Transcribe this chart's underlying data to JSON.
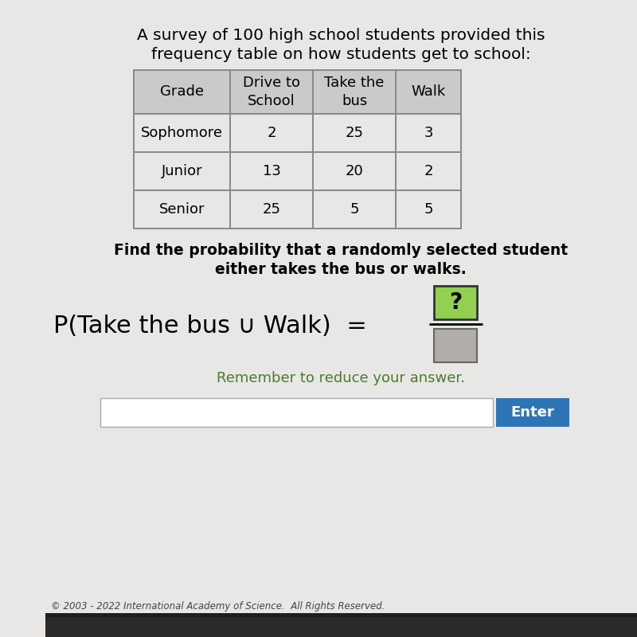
{
  "title_line1": "A survey of 100 high school students provided this",
  "title_line2": "frequency table on how students get to school:",
  "table_headers": [
    "Grade",
    "Drive to\nSchool",
    "Take the\nbus",
    "Walk"
  ],
  "table_rows": [
    [
      "Sophomore",
      "2",
      "25",
      "3"
    ],
    [
      "Junior",
      "13",
      "20",
      "2"
    ],
    [
      "Senior",
      "25",
      "5",
      "5"
    ]
  ],
  "question_line1": "Find the probability that a randomly selected student",
  "question_line2": "either takes the bus or walks.",
  "prob_label": "P(Take the bus ∪ Walk)  =",
  "numerator_label": "?",
  "remember_text": "Remember to reduce your answer.",
  "enter_label": "Enter",
  "bg_color": "#dcdcdc",
  "content_bg": "#e8e7e5",
  "table_header_bg": "#cccac8",
  "table_row_bg": "#e8e7e5",
  "green_numerator_bg": "#92d050",
  "gray_denominator_bg": "#b0adab",
  "green_text_color": "#4a7c2f",
  "enter_btn_color": "#2e75b6",
  "enter_text_color": "#ffffff",
  "border_color": "#888888",
  "title_fontsize": 14.5,
  "question_fontsize": 13.5,
  "prob_fontsize": 22,
  "table_fontsize": 13
}
